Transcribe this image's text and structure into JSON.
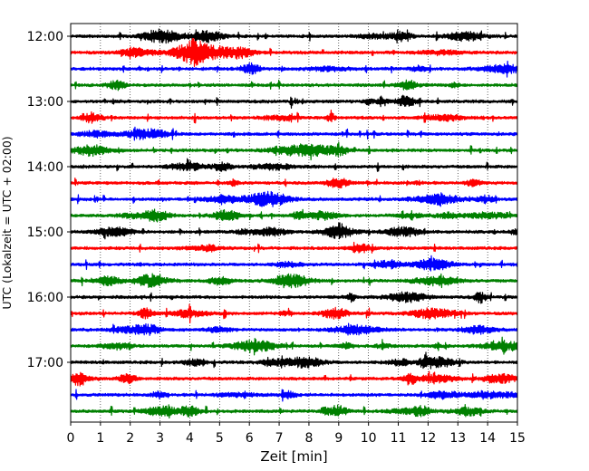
{
  "chart_data": {
    "type": "line",
    "title": "",
    "xlabel": "Zeit  [min]",
    "ylabel": "UTC (Lokalzeit = UTC + 02:00)",
    "xlim": [
      0,
      15
    ],
    "x_ticks": [
      0,
      1,
      2,
      3,
      4,
      5,
      6,
      7,
      8,
      9,
      10,
      11,
      12,
      13,
      14,
      15
    ],
    "y_ticks": [
      "12:00",
      "13:00",
      "14:00",
      "15:00",
      "16:00",
      "17:00"
    ],
    "grid": "vertical dotted",
    "color_cycle": [
      "#000000",
      "#ff0000",
      "#0000ff",
      "#008000"
    ],
    "trace_minutes_per_line": 15,
    "traces": [
      {
        "start": "12:00",
        "color": "#000000"
      },
      {
        "start": "12:15",
        "color": "#ff0000"
      },
      {
        "start": "12:30",
        "color": "#0000ff"
      },
      {
        "start": "12:45",
        "color": "#008000"
      },
      {
        "start": "13:00",
        "color": "#000000"
      },
      {
        "start": "13:15",
        "color": "#ff0000"
      },
      {
        "start": "13:30",
        "color": "#0000ff"
      },
      {
        "start": "13:45",
        "color": "#008000"
      },
      {
        "start": "14:00",
        "color": "#000000"
      },
      {
        "start": "14:15",
        "color": "#ff0000"
      },
      {
        "start": "14:30",
        "color": "#0000ff"
      },
      {
        "start": "14:45",
        "color": "#008000"
      },
      {
        "start": "15:00",
        "color": "#000000"
      },
      {
        "start": "15:15",
        "color": "#ff0000"
      },
      {
        "start": "15:30",
        "color": "#0000ff"
      },
      {
        "start": "15:45",
        "color": "#008000"
      },
      {
        "start": "16:00",
        "color": "#000000"
      },
      {
        "start": "16:15",
        "color": "#ff0000"
      },
      {
        "start": "16:30",
        "color": "#0000ff"
      },
      {
        "start": "16:45",
        "color": "#008000"
      },
      {
        "start": "17:00",
        "color": "#000000"
      },
      {
        "start": "17:15",
        "color": "#ff0000"
      },
      {
        "start": "17:30",
        "color": "#0000ff"
      },
      {
        "start": "17:45",
        "color": "#008000"
      }
    ]
  }
}
